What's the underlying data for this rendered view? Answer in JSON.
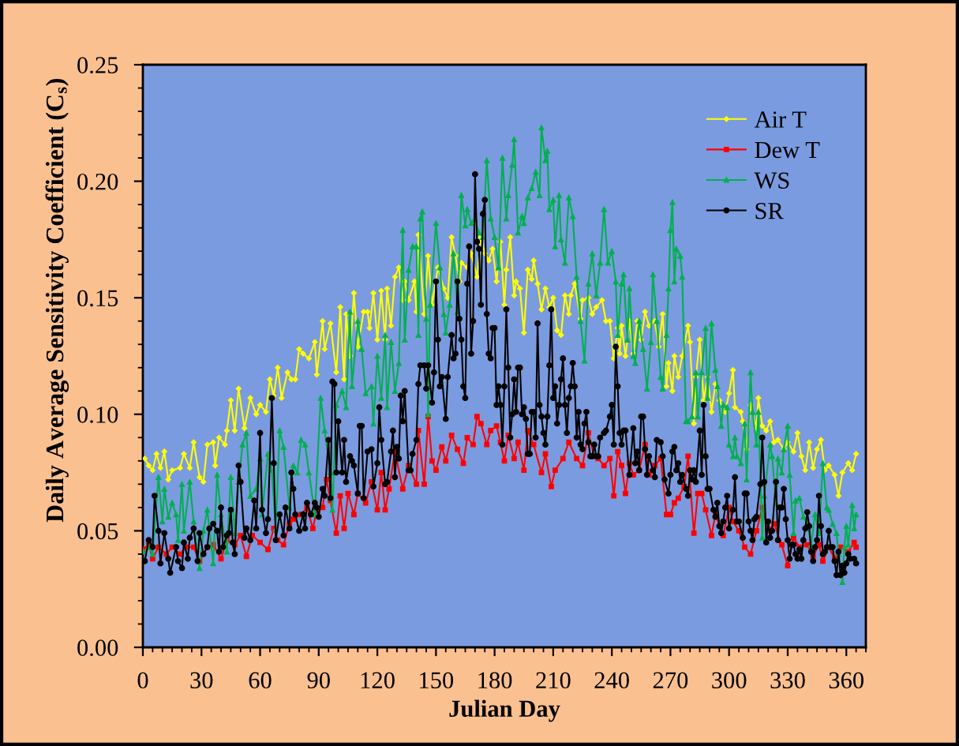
{
  "chart_data": {
    "type": "line",
    "xlabel": "Julian Day",
    "ylabel": "Daily Average Sensitivity Coefficient (C$_{s}$)",
    "xlim": [
      0,
      370
    ],
    "xticks": [
      0,
      {
        "value": 5,
        "label": null
      },
      {
        "value": 10,
        "label": null
      },
      {
        "value": 15,
        "label": null
      },
      {
        "value": 20,
        "label": null
      },
      {
        "value": 25,
        "label": null
      },
      30,
      {
        "value": 35,
        "label": null
      },
      {
        "value": 40,
        "label": null
      },
      {
        "value": 45,
        "label": null
      },
      {
        "value": 50,
        "label": null
      },
      {
        "value": 55,
        "label": null
      },
      60,
      {
        "value": 65,
        "label": null
      },
      {
        "value": 70,
        "label": null
      },
      {
        "value": 75,
        "label": null
      },
      {
        "value": 80,
        "label": null
      },
      {
        "value": 85,
        "label": null
      },
      90,
      {
        "value": 95,
        "label": null
      },
      {
        "value": 100,
        "label": null
      },
      {
        "value": 105,
        "label": null
      },
      {
        "value": 110,
        "label": null
      },
      {
        "value": 115,
        "label": null
      },
      120,
      {
        "value": 125,
        "label": null
      },
      {
        "value": 130,
        "label": null
      },
      {
        "value": 135,
        "label": null
      },
      {
        "value": 140,
        "label": null
      },
      {
        "value": 145,
        "label": null
      },
      150,
      {
        "value": 155,
        "label": null
      },
      {
        "value": 160,
        "label": null
      },
      {
        "value": 165,
        "label": null
      },
      {
        "value": 170,
        "label": null
      },
      {
        "value": 175,
        "label": null
      },
      180,
      {
        "value": 185,
        "label": null
      },
      {
        "value": 190,
        "label": null
      },
      {
        "value": 195,
        "label": null
      },
      {
        "value": 200,
        "label": null
      },
      {
        "value": 205,
        "label": null
      },
      210,
      {
        "value": 215,
        "label": null
      },
      {
        "value": 220,
        "label": null
      },
      {
        "value": 225,
        "label": null
      },
      {
        "value": 230,
        "label": null
      },
      {
        "value": 235,
        "label": null
      },
      240,
      {
        "value": 245,
        "label": null
      },
      {
        "value": 250,
        "label": null
      },
      {
        "value": 255,
        "label": null
      },
      {
        "value": 260,
        "label": null
      },
      {
        "value": 265,
        "label": null
      },
      270,
      {
        "value": 275,
        "label": null
      },
      {
        "value": 280,
        "label": null
      },
      {
        "value": 285,
        "label": null
      },
      {
        "value": 290,
        "label": null
      },
      {
        "value": 295,
        "label": null
      },
      300,
      {
        "value": 305,
        "label": null
      },
      {
        "value": 310,
        "label": null
      },
      {
        "value": 315,
        "label": null
      },
      {
        "value": 320,
        "label": null
      },
      {
        "value": 325,
        "label": null
      },
      330,
      {
        "value": 335,
        "label": null
      },
      {
        "value": 340,
        "label": null
      },
      {
        "value": 345,
        "label": null
      },
      {
        "value": 350,
        "label": null
      },
      {
        "value": 355,
        "label": null
      },
      360,
      {
        "value": 365,
        "label": null
      },
      {
        "value": 370,
        "label": null
      }
    ],
    "ylim": [
      0,
      0.25
    ],
    "yticks": [
      {
        "value": 0,
        "label": "0.00"
      },
      {
        "value": 0.01,
        "label": null
      },
      {
        "value": 0.02,
        "label": null
      },
      {
        "value": 0.03,
        "label": null
      },
      {
        "value": 0.04,
        "label": null
      },
      {
        "value": 0.05,
        "label": "0.05"
      },
      {
        "value": 0.06,
        "label": null
      },
      {
        "value": 0.07,
        "label": null
      },
      {
        "value": 0.08,
        "label": null
      },
      {
        "value": 0.09,
        "label": null
      },
      {
        "value": 0.1,
        "label": "0.10"
      },
      {
        "value": 0.11,
        "label": null
      },
      {
        "value": 0.12,
        "label": null
      },
      {
        "value": 0.13,
        "label": null
      },
      {
        "value": 0.14,
        "label": null
      },
      {
        "value": 0.15,
        "label": "0.15"
      },
      {
        "value": 0.16,
        "label": null
      },
      {
        "value": 0.17,
        "label": null
      },
      {
        "value": 0.18,
        "label": null
      },
      {
        "value": 0.19,
        "label": null
      },
      {
        "value": 0.2,
        "label": "0.20"
      },
      {
        "value": 0.21,
        "label": null
      },
      {
        "value": 0.22,
        "label": null
      },
      {
        "value": 0.23,
        "label": null
      },
      {
        "value": 0.24,
        "label": null
      },
      {
        "value": 0.25,
        "label": "0.25"
      }
    ],
    "legend": "top right",
    "line_style": "solid",
    "series": [
      {
        "name": "Air T",
        "color": "#ffff00",
        "marker": "diamond",
        "x": [
          1,
          3,
          5,
          7,
          9,
          11,
          13,
          15,
          19,
          21,
          24,
          26,
          29,
          31,
          33,
          36,
          37,
          39,
          42,
          43,
          45,
          47,
          49,
          52,
          55,
          58,
          60,
          63,
          65,
          67,
          69,
          71,
          74,
          76,
          78,
          80,
          82,
          85,
          88,
          89,
          92,
          93,
          96,
          99,
          101,
          103,
          104,
          106,
          108,
          110,
          113,
          115,
          116,
          118,
          120,
          122,
          124,
          125,
          127,
          129,
          131,
          133,
          134,
          136,
          139,
          140,
          141,
          144,
          146,
          148,
          151,
          154,
          156,
          158,
          160,
          162,
          163,
          166,
          168,
          171,
          173,
          175,
          177,
          179,
          181,
          183,
          185,
          186,
          188,
          190,
          191,
          193,
          195,
          197,
          199,
          200,
          202,
          204,
          206,
          208,
          210,
          212,
          214,
          216,
          218,
          219,
          221,
          224,
          225,
          228,
          230,
          232,
          235,
          237,
          239,
          241,
          243,
          244,
          245,
          247,
          249,
          251,
          253,
          255,
          257,
          259,
          262,
          264,
          266,
          268,
          269,
          271,
          272,
          274,
          276,
          279,
          280,
          282,
          283,
          285,
          287,
          289,
          291,
          293,
          295,
          298,
          300,
          302,
          303,
          306,
          307,
          309,
          311,
          314,
          315,
          317,
          319,
          321,
          323,
          325,
          328,
          330,
          333,
          335,
          337,
          339,
          341,
          343,
          345,
          347,
          349,
          351,
          354,
          356,
          358,
          361,
          363,
          365
        ],
        "values": [
          0.081,
          0.078,
          0.076,
          0.083,
          0.077,
          0.084,
          0.072,
          0.076,
          0.077,
          0.083,
          0.077,
          0.088,
          0.073,
          0.071,
          0.087,
          0.088,
          0.078,
          0.09,
          0.087,
          0.093,
          0.106,
          0.093,
          0.111,
          0.094,
          0.107,
          0.1,
          0.104,
          0.101,
          0.115,
          0.108,
          0.12,
          0.107,
          0.118,
          0.115,
          0.115,
          0.128,
          0.126,
          0.124,
          0.131,
          0.117,
          0.14,
          0.128,
          0.139,
          0.118,
          0.146,
          0.115,
          0.143,
          0.125,
          0.152,
          0.129,
          0.144,
          0.144,
          0.137,
          0.152,
          0.132,
          0.153,
          0.132,
          0.154,
          0.138,
          0.159,
          0.163,
          0.149,
          0.157,
          0.149,
          0.157,
          0.144,
          0.177,
          0.143,
          0.168,
          0.147,
          0.163,
          0.154,
          0.15,
          0.176,
          0.168,
          0.157,
          0.165,
          0.163,
          0.169,
          0.159,
          0.176,
          0.169,
          0.166,
          0.171,
          0.157,
          0.174,
          0.147,
          0.162,
          0.176,
          0.151,
          0.157,
          0.154,
          0.135,
          0.162,
          0.158,
          0.166,
          0.156,
          0.145,
          0.154,
          0.146,
          0.15,
          0.136,
          0.134,
          0.151,
          0.143,
          0.151,
          0.156,
          0.141,
          0.149,
          0.15,
          0.143,
          0.146,
          0.149,
          0.14,
          0.14,
          0.124,
          0.137,
          0.126,
          0.138,
          0.125,
          0.14,
          0.126,
          0.14,
          0.132,
          0.144,
          0.138,
          0.14,
          0.129,
          0.143,
          0.112,
          0.122,
          0.11,
          0.125,
          0.116,
          0.125,
          0.138,
          0.131,
          0.096,
          0.116,
          0.132,
          0.106,
          0.116,
          0.101,
          0.113,
          0.106,
          0.101,
          0.109,
          0.119,
          0.103,
          0.101,
          0.097,
          0.085,
          0.104,
          0.094,
          0.107,
          0.095,
          0.093,
          0.097,
          0.088,
          0.089,
          0.085,
          0.088,
          0.084,
          0.092,
          0.082,
          0.076,
          0.088,
          0.077,
          0.085,
          0.089,
          0.076,
          0.078,
          0.074,
          0.065,
          0.075,
          0.079,
          0.076,
          0.083
        ]
      },
      {
        "name": "Dew T",
        "color": "#ff0000",
        "marker": "square",
        "x": [
          0,
          3,
          5,
          8,
          12,
          15,
          19,
          22,
          26,
          29,
          33,
          36,
          40,
          43,
          47,
          50,
          53,
          56,
          60,
          64,
          67,
          69,
          72,
          75,
          77,
          81,
          84,
          87,
          89,
          92,
          94,
          96,
          99,
          101,
          103,
          105,
          108,
          110,
          114,
          117,
          120,
          122,
          124,
          126,
          129,
          133,
          136,
          140,
          141,
          144,
          146,
          148,
          150,
          153,
          155,
          158,
          161,
          164,
          166,
          169,
          171,
          173,
          176,
          178,
          181,
          183,
          185,
          187,
          190,
          192,
          195,
          197,
          200,
          204,
          206,
          209,
          211,
          215,
          218,
          222,
          225,
          228,
          231,
          233,
          236,
          239,
          241,
          243,
          245,
          247,
          249,
          251,
          254,
          257,
          259,
          262,
          265,
          268,
          270,
          272,
          274,
          277,
          279,
          282,
          284,
          286,
          288,
          291,
          293,
          297,
          300,
          302,
          305,
          308,
          311,
          314,
          317,
          320,
          323,
          327,
          330,
          333,
          336,
          340,
          343,
          346,
          348,
          351,
          354,
          357,
          361,
          364,
          365
        ],
        "values": [
          0.042,
          0.044,
          0.038,
          0.043,
          0.04,
          0.043,
          0.04,
          0.043,
          0.043,
          0.037,
          0.043,
          0.044,
          0.038,
          0.046,
          0.044,
          0.048,
          0.039,
          0.048,
          0.045,
          0.042,
          0.051,
          0.046,
          0.044,
          0.053,
          0.055,
          0.057,
          0.06,
          0.051,
          0.059,
          0.06,
          0.072,
          0.063,
          0.049,
          0.065,
          0.051,
          0.066,
          0.057,
          0.066,
          0.062,
          0.071,
          0.059,
          0.075,
          0.059,
          0.068,
          0.084,
          0.068,
          0.078,
          0.07,
          0.093,
          0.07,
          0.099,
          0.08,
          0.076,
          0.086,
          0.08,
          0.091,
          0.085,
          0.079,
          0.09,
          0.087,
          0.099,
          0.096,
          0.087,
          0.093,
          0.095,
          0.088,
          0.08,
          0.091,
          0.081,
          0.088,
          0.076,
          0.093,
          0.087,
          0.075,
          0.083,
          0.069,
          0.076,
          0.081,
          0.088,
          0.081,
          0.078,
          0.092,
          0.082,
          0.081,
          0.078,
          0.081,
          0.065,
          0.084,
          0.078,
          0.066,
          0.079,
          0.074,
          0.076,
          0.087,
          0.074,
          0.078,
          0.081,
          0.057,
          0.057,
          0.062,
          0.064,
          0.069,
          0.082,
          0.049,
          0.066,
          0.066,
          0.059,
          0.048,
          0.057,
          0.048,
          0.06,
          0.054,
          0.05,
          0.043,
          0.04,
          0.05,
          0.06,
          0.05,
          0.053,
          0.044,
          0.035,
          0.047,
          0.043,
          0.044,
          0.039,
          0.044,
          0.037,
          0.043,
          0.038,
          0.043,
          0.041,
          0.045,
          0.043
        ]
      },
      {
        "name": "WS",
        "color": "#00b050",
        "marker": "triangle",
        "x": [
          0,
          3,
          5,
          8,
          10,
          11,
          13,
          15,
          17,
          18,
          20,
          21,
          24,
          26,
          29,
          31,
          33,
          36,
          38,
          40,
          43,
          45,
          47,
          49,
          51,
          53,
          55,
          58,
          60,
          61,
          64,
          66,
          68,
          70,
          72,
          75,
          77,
          79,
          81,
          83,
          85,
          88,
          91,
          93,
          96,
          97,
          99,
          102,
          104,
          106,
          107,
          110,
          112,
          114,
          117,
          118,
          120,
          122,
          124,
          125,
          127,
          129,
          131,
          133,
          134,
          136,
          138,
          140,
          141,
          142,
          143,
          145,
          146,
          147,
          150,
          152,
          154,
          155,
          157,
          159,
          161,
          163,
          165,
          166,
          168,
          170,
          172,
          174,
          176,
          178,
          180,
          182,
          184,
          186,
          187,
          189,
          190,
          192,
          194,
          195,
          197,
          199,
          201,
          203,
          204,
          206,
          207,
          208,
          210,
          211,
          213,
          214,
          216,
          218,
          220,
          222,
          224,
          226,
          228,
          230,
          232,
          234,
          236,
          238,
          240,
          242,
          243,
          245,
          246,
          248,
          249,
          251,
          252,
          254,
          256,
          258,
          260,
          261,
          263,
          265,
          266,
          268,
          269,
          270,
          271,
          272,
          273,
          275,
          276,
          278,
          279,
          281,
          283,
          284,
          286,
          288,
          289,
          291,
          293,
          294,
          296,
          297,
          299,
          300,
          302,
          303,
          304,
          306,
          308,
          309,
          311,
          312,
          314,
          315,
          317,
          318,
          321,
          322,
          324,
          325,
          327,
          328,
          330,
          331,
          333,
          334,
          336,
          338,
          340,
          342,
          344,
          346,
          348,
          350,
          351,
          353,
          355,
          356,
          358,
          359,
          360,
          361,
          363,
          364,
          365
        ],
        "values": [
          0.041,
          0.043,
          0.04,
          0.073,
          0.054,
          0.068,
          0.056,
          0.062,
          0.057,
          0.046,
          0.07,
          0.05,
          0.071,
          0.054,
          0.034,
          0.05,
          0.059,
          0.036,
          0.074,
          0.057,
          0.041,
          0.073,
          0.049,
          0.071,
          0.087,
          0.092,
          0.065,
          0.068,
          0.081,
          0.057,
          0.083,
          0.076,
          0.051,
          0.093,
          0.086,
          0.06,
          0.078,
          0.075,
          0.089,
          0.087,
          0.075,
          0.057,
          0.107,
          0.093,
          0.075,
          0.059,
          0.104,
          0.11,
          0.103,
          0.144,
          0.112,
          0.14,
          0.128,
          0.109,
          0.112,
          0.096,
          0.125,
          0.107,
          0.134,
          0.103,
          0.131,
          0.11,
          0.122,
          0.179,
          0.132,
          0.162,
          0.172,
          0.172,
          0.134,
          0.184,
          0.187,
          0.141,
          0.1,
          0.147,
          0.182,
          0.163,
          0.143,
          0.135,
          0.147,
          0.169,
          0.144,
          0.194,
          0.181,
          0.188,
          0.182,
          0.184,
          0.178,
          0.176,
          0.209,
          0.184,
          0.176,
          0.163,
          0.21,
          0.184,
          0.194,
          0.207,
          0.218,
          0.178,
          0.185,
          0.182,
          0.193,
          0.197,
          0.204,
          0.194,
          0.223,
          0.209,
          0.213,
          0.188,
          0.192,
          0.172,
          0.194,
          0.175,
          0.165,
          0.193,
          0.185,
          0.159,
          0.14,
          0.123,
          0.156,
          0.169,
          0.151,
          0.165,
          0.188,
          0.165,
          0.17,
          0.157,
          0.134,
          0.156,
          0.16,
          0.132,
          0.154,
          0.125,
          0.122,
          0.14,
          0.128,
          0.111,
          0.131,
          0.16,
          0.14,
          0.116,
          0.111,
          0.134,
          0.154,
          0.179,
          0.191,
          0.157,
          0.171,
          0.168,
          0.159,
          0.097,
          0.097,
          0.099,
          0.118,
          0.099,
          0.118,
          0.137,
          0.107,
          0.139,
          0.119,
          0.112,
          0.095,
          0.104,
          0.103,
          0.087,
          0.082,
          0.09,
          0.082,
          0.079,
          0.096,
          0.072,
          0.118,
          0.101,
          0.087,
          0.101,
          0.047,
          0.065,
          0.087,
          0.082,
          0.062,
          0.081,
          0.075,
          0.085,
          0.095,
          0.074,
          0.049,
          0.063,
          0.064,
          0.056,
          0.053,
          0.044,
          0.057,
          0.049,
          0.079,
          0.06,
          0.059,
          0.053,
          0.049,
          0.04,
          0.028,
          0.043,
          0.052,
          0.044,
          0.061,
          0.051,
          0.057
        ]
      },
      {
        "name": "SR",
        "color": "#000000",
        "marker": "circle",
        "x": [
          1,
          3,
          5,
          6,
          8,
          9,
          11,
          13,
          14,
          17,
          18,
          20,
          21,
          23,
          24,
          26,
          28,
          29,
          31,
          33,
          34,
          36,
          38,
          39,
          40,
          41,
          43,
          44,
          45,
          46,
          47,
          49,
          50,
          52,
          53,
          55,
          57,
          58,
          60,
          61,
          63,
          64,
          66,
          67,
          68,
          70,
          72,
          73,
          75,
          76,
          77,
          78,
          80,
          82,
          83,
          84,
          86,
          88,
          89,
          90,
          92,
          93,
          95,
          96,
          97,
          98,
          99,
          100,
          102,
          103,
          104,
          106,
          107,
          108,
          110,
          111,
          112,
          113,
          115,
          117,
          118,
          120,
          121,
          122,
          124,
          125,
          127,
          128,
          129,
          130,
          131,
          132,
          133,
          134,
          136,
          137,
          138,
          140,
          141,
          142,
          144,
          145,
          146,
          148,
          149,
          150,
          151,
          152,
          153,
          155,
          156,
          158,
          159,
          160,
          161,
          162,
          163,
          164,
          165,
          166,
          167,
          168,
          169,
          170,
          171,
          172,
          173,
          174,
          175,
          176,
          177,
          178,
          179,
          180,
          181,
          182,
          183,
          184,
          185,
          186,
          187,
          188,
          189,
          190,
          191,
          192,
          193,
          194,
          195,
          196,
          197,
          198,
          199,
          200,
          201,
          202,
          203,
          204,
          205,
          206,
          207,
          208,
          209,
          210,
          211,
          212,
          213,
          214,
          215,
          216,
          217,
          218,
          219,
          220,
          221,
          222,
          223,
          224,
          225,
          226,
          227,
          228,
          229,
          230,
          231,
          232,
          233,
          234,
          236,
          237,
          239,
          240,
          241,
          242,
          243,
          244,
          245,
          246,
          247,
          249,
          251,
          252,
          253,
          254,
          255,
          256,
          257,
          258,
          259,
          261,
          262,
          263,
          265,
          266,
          267,
          269,
          270,
          271,
          272,
          273,
          274,
          275,
          276,
          278,
          279,
          280,
          281,
          282,
          283,
          285,
          286,
          287,
          288,
          289,
          290,
          292,
          293,
          294,
          295,
          296,
          297,
          298,
          299,
          300,
          302,
          303,
          304,
          305,
          307,
          308,
          309,
          310,
          311,
          312,
          313,
          314,
          316,
          317,
          318,
          319,
          320,
          321,
          322,
          324,
          325,
          326,
          327,
          328,
          329,
          330,
          331,
          332,
          333,
          334,
          335,
          336,
          337,
          338,
          339,
          340,
          341,
          342,
          343,
          344,
          345,
          346,
          347,
          348,
          349,
          350,
          351,
          352,
          353,
          354,
          355,
          356,
          357,
          358,
          359,
          360,
          361,
          362,
          364,
          365
        ],
        "values": [
          0.037,
          0.046,
          0.043,
          0.065,
          0.05,
          0.036,
          0.049,
          0.038,
          0.032,
          0.043,
          0.037,
          0.034,
          0.045,
          0.038,
          0.047,
          0.051,
          0.037,
          0.049,
          0.04,
          0.043,
          0.051,
          0.053,
          0.05,
          0.041,
          0.06,
          0.043,
          0.048,
          0.049,
          0.059,
          0.045,
          0.04,
          0.078,
          0.071,
          0.047,
          0.051,
          0.046,
          0.063,
          0.051,
          0.092,
          0.059,
          0.049,
          0.055,
          0.107,
          0.079,
          0.046,
          0.057,
          0.048,
          0.06,
          0.051,
          0.075,
          0.068,
          0.057,
          0.05,
          0.057,
          0.051,
          0.062,
          0.057,
          0.062,
          0.06,
          0.056,
          0.068,
          0.065,
          0.089,
          0.064,
          0.114,
          0.113,
          0.075,
          0.097,
          0.075,
          0.089,
          0.071,
          0.082,
          0.08,
          0.078,
          0.066,
          0.095,
          0.095,
          0.064,
          0.084,
          0.085,
          0.069,
          0.079,
          0.103,
          0.089,
          0.07,
          0.071,
          0.084,
          0.093,
          0.073,
          0.086,
          0.081,
          0.108,
          0.097,
          0.11,
          0.076,
          0.076,
          0.083,
          0.089,
          0.113,
          0.121,
          0.121,
          0.111,
          0.121,
          0.105,
          0.118,
          0.157,
          0.132,
          0.112,
          0.116,
          0.098,
          0.116,
          0.134,
          0.124,
          0.126,
          0.157,
          0.141,
          0.132,
          0.112,
          0.107,
          0.156,
          0.172,
          0.126,
          0.14,
          0.203,
          0.174,
          0.171,
          0.147,
          0.186,
          0.192,
          0.143,
          0.126,
          0.124,
          0.137,
          0.137,
          0.104,
          0.112,
          0.104,
          0.087,
          0.112,
          0.145,
          0.12,
          0.09,
          0.1,
          0.115,
          0.101,
          0.12,
          0.12,
          0.1,
          0.103,
          0.098,
          0.083,
          0.083,
          0.101,
          0.101,
          0.09,
          0.139,
          0.104,
          0.099,
          0.092,
          0.087,
          0.099,
          0.121,
          0.145,
          0.107,
          0.112,
          0.096,
          0.104,
          0.115,
          0.124,
          0.104,
          0.092,
          0.107,
          0.112,
          0.122,
          0.112,
          0.09,
          0.101,
          0.087,
          0.085,
          0.096,
          0.101,
          0.088,
          0.082,
          0.082,
          0.087,
          0.082,
          0.082,
          0.09,
          0.092,
          0.093,
          0.099,
          0.104,
          0.087,
          0.129,
          0.112,
          0.092,
          0.087,
          0.093,
          0.093,
          0.074,
          0.094,
          0.079,
          0.084,
          0.076,
          0.099,
          0.099,
          0.085,
          0.074,
          0.082,
          0.076,
          0.073,
          0.089,
          0.088,
          0.082,
          0.072,
          0.066,
          0.074,
          0.084,
          0.086,
          0.076,
          0.079,
          0.071,
          0.074,
          0.068,
          0.065,
          0.076,
          0.072,
          0.076,
          0.071,
          0.093,
          0.074,
          0.104,
          0.082,
          0.068,
          0.068,
          0.059,
          0.056,
          0.062,
          0.052,
          0.049,
          0.054,
          0.06,
          0.065,
          0.051,
          0.059,
          0.073,
          0.054,
          0.054,
          0.047,
          0.066,
          0.066,
          0.054,
          0.05,
          0.046,
          0.055,
          0.056,
          0.07,
          0.09,
          0.071,
          0.045,
          0.054,
          0.047,
          0.05,
          0.071,
          0.046,
          0.06,
          0.06,
          0.068,
          0.055,
          0.046,
          0.038,
          0.044,
          0.044,
          0.04,
          0.038,
          0.042,
          0.038,
          0.046,
          0.051,
          0.058,
          0.052,
          0.041,
          0.037,
          0.043,
          0.046,
          0.065,
          0.052,
          0.04,
          0.041,
          0.043,
          0.05,
          0.043,
          0.043,
          0.037,
          0.031,
          0.041,
          0.031,
          0.035,
          0.032,
          0.036,
          0.04,
          0.038,
          0.038,
          0.036
        ]
      }
    ]
  }
}
